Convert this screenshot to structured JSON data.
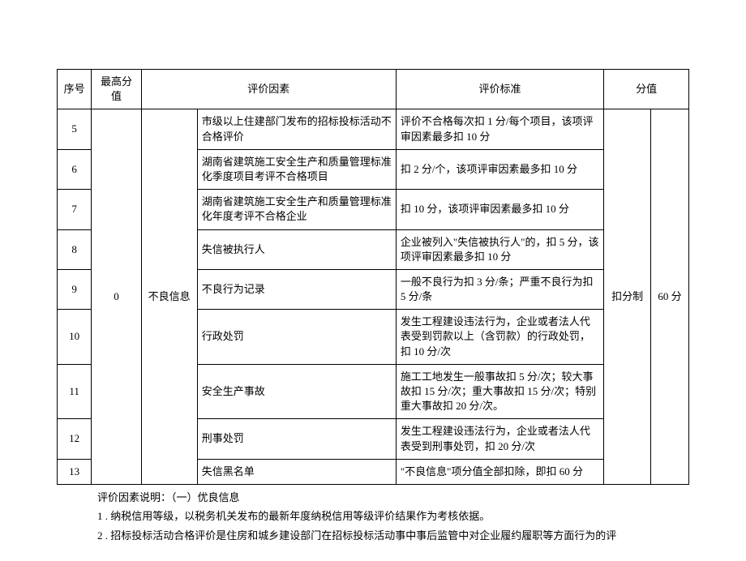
{
  "headers": {
    "seq": "序号",
    "maxScore": "最高分值",
    "factor": "评价因素",
    "standard": "评价标准",
    "score": "分值"
  },
  "merged": {
    "maxScore": "0",
    "category": "不良信息",
    "method": "扣分制",
    "totalScore": "60 分"
  },
  "rows": [
    {
      "seq": "5",
      "factor": "市级以上住建部门发布的招标投标活动不合格评价",
      "standard": "评价不合格每次扣 1 分/每个项目，该项评审因素最多扣 10 分"
    },
    {
      "seq": "6",
      "factor": "湖南省建筑施工安全生产和质量管理标准化季度项目考评不合格项目",
      "standard": "扣 2 分/个，该项评审因素最多扣 10 分"
    },
    {
      "seq": "7",
      "factor": "湖南省建筑施工安全生产和质量管理标准化年度考评不合格企业",
      "standard": "扣 10 分，该项评审因素最多扣 10 分"
    },
    {
      "seq": "8",
      "factor": "失信被执行人",
      "standard": "企业被列入\"失信被执行人\"的，扣 5 分，该项评审因素最多扣 10 分"
    },
    {
      "seq": "9",
      "factor": "不良行为记录",
      "standard": "一般不良行为扣 3 分/条；严重不良行为扣 5 分/条"
    },
    {
      "seq": "10",
      "factor": "行政处罚",
      "standard": "发生工程建设违法行为，企业或者法人代表受到罚款以上（含罚款）的行政处罚，扣 10 分/次"
    },
    {
      "seq": "11",
      "factor": "安全生产事故",
      "standard": "施工工地发生一般事故扣 5 分/次；较大事故扣 15 分/次；重大事故扣 15 分/次；特别重大事故扣 20 分/次。"
    },
    {
      "seq": "12",
      "factor": "刑事处罚",
      "standard": "发生工程建设违法行为，企业或者法人代表受到刑事处罚，扣 20 分/次"
    },
    {
      "seq": "13",
      "factor": "失信黑名单",
      "standard": "\"不良信息\"项分值全部扣除，即扣 60 分"
    }
  ],
  "notes": {
    "line1": "评价因素说明：（一）优良信息",
    "line2": "1 . 纳税信用等级，以税务机关发布的最新年度纳税信用等级评价结果作为考核依据。",
    "line3": "2 . 招标投标活动合格评价是住房和城乡建设部门在招标投标活动事中事后监管中对企业履约履职等方面行为的评"
  },
  "style": {
    "fontFamily": "SimSun",
    "fontSize": 13,
    "borderColor": "#000000",
    "backgroundColor": "#ffffff",
    "textColor": "#000000"
  }
}
